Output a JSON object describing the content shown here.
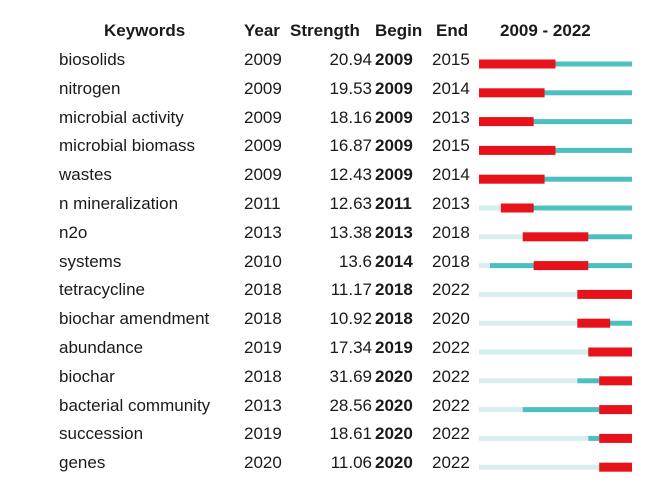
{
  "headers": {
    "keywords": "Keywords",
    "year": "Year",
    "strength": "Strength",
    "begin": "Begin",
    "end": "End",
    "range": "2009 - 2022"
  },
  "colors": {
    "burst": "#e8121b",
    "active": "#4dbfbf",
    "inactive": "#d6eeee"
  },
  "chart_data": {
    "type": "table",
    "title": "",
    "timeline_range": [
      2009,
      2022
    ],
    "columns": [
      "Keywords",
      "Year",
      "Strength",
      "Begin",
      "End"
    ],
    "rows": [
      {
        "keyword": "biosolids",
        "year": 2009,
        "strength": 20.94,
        "begin": 2009,
        "end": 2015
      },
      {
        "keyword": "nitrogen",
        "year": 2009,
        "strength": 19.53,
        "begin": 2009,
        "end": 2014
      },
      {
        "keyword": "microbial activity",
        "year": 2009,
        "strength": 18.16,
        "begin": 2009,
        "end": 2013
      },
      {
        "keyword": "microbial biomass",
        "year": 2009,
        "strength": 16.87,
        "begin": 2009,
        "end": 2015
      },
      {
        "keyword": "wastes",
        "year": 2009,
        "strength": 12.43,
        "begin": 2009,
        "end": 2014
      },
      {
        "keyword": "n mineralization",
        "year": 2011,
        "strength": 12.63,
        "begin": 2011,
        "end": 2013
      },
      {
        "keyword": "n2o",
        "year": 2013,
        "strength": 13.38,
        "begin": 2013,
        "end": 2018
      },
      {
        "keyword": "systems",
        "year": 2010,
        "strength": 13.6,
        "begin": 2014,
        "end": 2018
      },
      {
        "keyword": "tetracycline",
        "year": 2018,
        "strength": 11.17,
        "begin": 2018,
        "end": 2022
      },
      {
        "keyword": "biochar amendment",
        "year": 2018,
        "strength": 10.92,
        "begin": 2018,
        "end": 2020
      },
      {
        "keyword": "abundance",
        "year": 2019,
        "strength": 17.34,
        "begin": 2019,
        "end": 2022
      },
      {
        "keyword": "biochar",
        "year": 2018,
        "strength": 31.69,
        "begin": 2020,
        "end": 2022
      },
      {
        "keyword": "bacterial community",
        "year": 2013,
        "strength": 28.56,
        "begin": 2020,
        "end": 2022
      },
      {
        "keyword": "succession",
        "year": 2019,
        "strength": 18.61,
        "begin": 2020,
        "end": 2022
      },
      {
        "keyword": "genes",
        "year": 2020,
        "strength": 11.06,
        "begin": 2020,
        "end": 2022
      }
    ]
  }
}
